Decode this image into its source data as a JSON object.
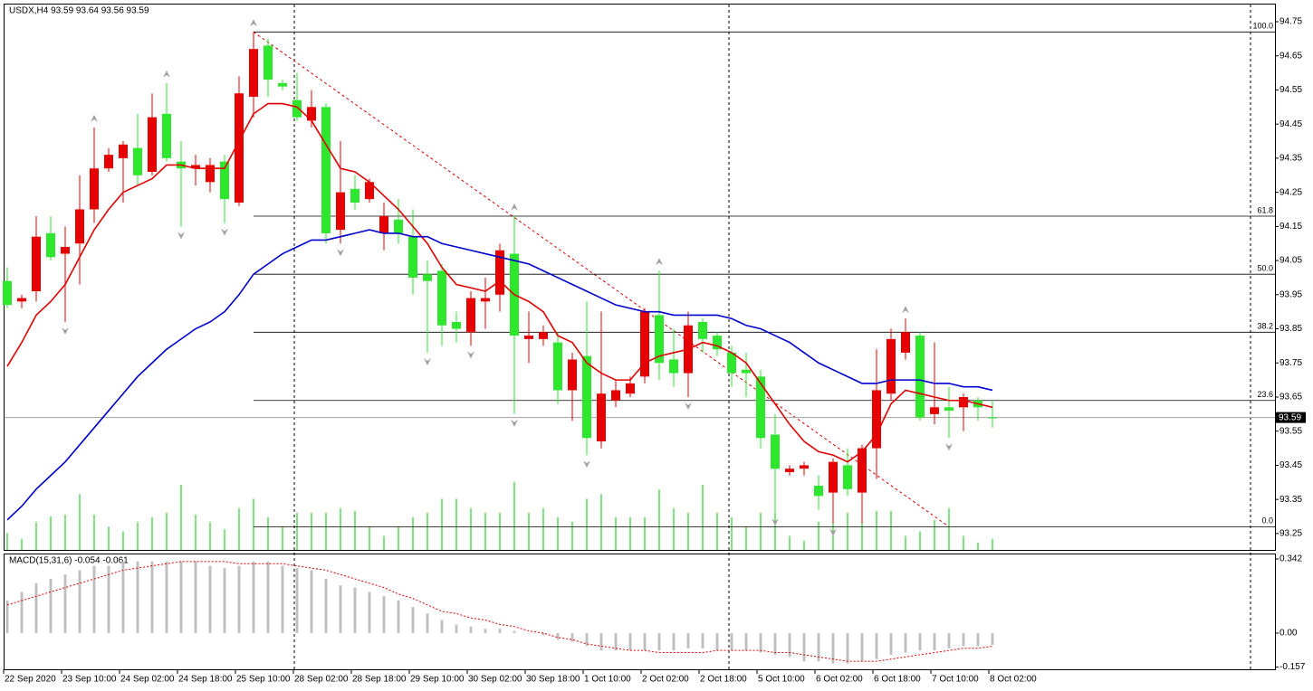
{
  "chart_data": [
    {
      "type": "candlestick",
      "title": "USDX,H4  93.59 93.64 93.56 93.59",
      "categories": [
        "22 Sep 2020",
        null,
        null,
        null,
        "23 Sep 10:00",
        null,
        null,
        null,
        "24 Sep 02:00",
        null,
        null,
        null,
        "24 Sep 18:00",
        null,
        null,
        null,
        "25 Sep 10:00",
        null,
        null,
        null,
        "28 Sep 02:00",
        null,
        null,
        null,
        "28 Sep 18:00",
        null,
        null,
        null,
        "29 Sep 10:00",
        null,
        null,
        null,
        "30 Sep 02:00",
        null,
        null,
        null,
        "30 Sep 18:00",
        null,
        null,
        null,
        "1 Oct 10:00",
        null,
        null,
        null,
        "2 Oct 02:00",
        null,
        null,
        null,
        "2 Oct 18:00",
        null,
        null,
        null,
        "5 Oct 10:00",
        null,
        null,
        null,
        "6 Oct 02:00",
        null,
        null,
        null,
        "6 Oct 18:00",
        null,
        null,
        null,
        "7 Oct 10:00",
        null,
        null,
        null,
        "8 Oct 02:00"
      ],
      "open": [
        93.99,
        93.93,
        93.96,
        94.13,
        94.07,
        94.1,
        94.2,
        94.32,
        94.35,
        94.38,
        94.31,
        94.48,
        94.34,
        94.32,
        94.28,
        94.34,
        94.22,
        94.53,
        94.68,
        94.57,
        94.52,
        94.46,
        94.5,
        94.14,
        94.26,
        94.23,
        94.13,
        94.17,
        94.12,
        94.01,
        94.02,
        93.87,
        93.84,
        93.93,
        93.95,
        94.07,
        93.82,
        93.82,
        93.81,
        93.67,
        93.77,
        93.52,
        93.64,
        93.66,
        93.71,
        93.89,
        93.76,
        93.72,
        93.87,
        93.83,
        93.78,
        93.73,
        93.71,
        93.54,
        93.43,
        93.44,
        93.39,
        93.37,
        93.45,
        93.37,
        93.5,
        93.66,
        93.78,
        93.83,
        93.6,
        93.62,
        93.62,
        93.64,
        93.59
      ],
      "high": [
        94.03,
        93.95,
        94.18,
        94.18,
        94.15,
        94.3,
        94.44,
        94.38,
        94.4,
        94.48,
        94.54,
        94.57,
        94.4,
        94.36,
        94.35,
        94.36,
        94.59,
        94.72,
        94.7,
        94.58,
        94.6,
        94.55,
        94.51,
        94.4,
        94.3,
        94.29,
        94.22,
        94.23,
        94.2,
        94.05,
        94.04,
        93.9,
        93.96,
        94.0,
        94.1,
        94.18,
        93.9,
        93.86,
        93.84,
        93.78,
        93.93,
        93.9,
        93.7,
        93.71,
        93.91,
        94.02,
        93.85,
        93.9,
        93.88,
        93.84,
        93.8,
        93.78,
        93.73,
        93.6,
        93.45,
        93.46,
        93.42,
        93.47,
        93.5,
        93.51,
        93.79,
        93.85,
        93.88,
        93.84,
        93.81,
        93.68,
        93.66,
        93.65,
        93.64
      ],
      "low": [
        93.91,
        93.91,
        93.93,
        94.05,
        93.87,
        93.98,
        94.16,
        94.31,
        94.22,
        94.27,
        94.3,
        94.34,
        94.15,
        94.27,
        94.25,
        94.16,
        94.21,
        94.47,
        94.53,
        94.55,
        94.46,
        94.44,
        94.1,
        94.1,
        94.2,
        94.22,
        94.08,
        94.1,
        93.95,
        93.78,
        93.8,
        93.81,
        93.8,
        93.85,
        93.9,
        93.6,
        93.75,
        93.8,
        93.63,
        93.58,
        93.48,
        93.5,
        93.62,
        93.65,
        93.69,
        93.7,
        93.68,
        93.65,
        93.78,
        93.77,
        93.68,
        93.65,
        93.5,
        93.31,
        93.42,
        93.42,
        93.32,
        93.28,
        93.36,
        93.28,
        93.41,
        93.64,
        93.76,
        93.58,
        93.57,
        93.53,
        93.55,
        93.58,
        93.56
      ],
      "close": [
        93.92,
        93.94,
        94.12,
        94.06,
        94.09,
        94.2,
        94.32,
        94.36,
        94.39,
        94.3,
        94.47,
        94.35,
        94.32,
        94.33,
        94.33,
        94.23,
        94.54,
        94.67,
        94.58,
        94.56,
        94.47,
        94.5,
        94.13,
        94.25,
        94.22,
        94.28,
        94.18,
        94.13,
        94.0,
        93.99,
        93.86,
        93.85,
        93.94,
        93.94,
        94.08,
        93.83,
        93.83,
        93.84,
        93.67,
        93.76,
        93.53,
        93.66,
        93.67,
        93.69,
        93.9,
        93.75,
        93.72,
        93.86,
        93.82,
        93.79,
        93.72,
        93.72,
        93.53,
        93.44,
        93.44,
        93.45,
        93.36,
        93.46,
        93.38,
        93.5,
        93.67,
        93.82,
        93.84,
        93.59,
        93.62,
        93.61,
        93.65,
        93.62,
        93.59
      ],
      "up_color": "#e60000",
      "down_color": "#2ee62e",
      "moving_averages": [
        {
          "color": "#e00000",
          "values": [
            93.74,
            93.81,
            93.89,
            93.93,
            93.98,
            94.06,
            94.14,
            94.2,
            94.25,
            94.27,
            94.29,
            94.33,
            94.33,
            94.32,
            94.32,
            94.32,
            94.4,
            94.48,
            94.51,
            94.51,
            94.5,
            94.46,
            94.39,
            94.32,
            94.31,
            94.28,
            94.24,
            94.2,
            94.15,
            94.1,
            94.03,
            93.98,
            93.97,
            93.96,
            93.99,
            93.95,
            93.93,
            93.9,
            93.83,
            93.81,
            93.75,
            93.72,
            93.7,
            93.7,
            93.75,
            93.77,
            93.78,
            93.79,
            93.81,
            93.8,
            93.78,
            93.75,
            93.69,
            93.63,
            93.57,
            93.52,
            93.49,
            93.48,
            93.46,
            93.49,
            93.54,
            93.63,
            93.67,
            93.66,
            93.65,
            93.64,
            93.64,
            93.63,
            93.62
          ]
        },
        {
          "color": "#0000cd",
          "values": [
            93.29,
            93.33,
            93.38,
            93.42,
            93.46,
            93.51,
            93.56,
            93.61,
            93.66,
            93.71,
            93.75,
            93.79,
            93.82,
            93.85,
            93.87,
            93.9,
            93.95,
            94.01,
            94.04,
            94.07,
            94.09,
            94.11,
            94.11,
            94.12,
            94.13,
            94.14,
            94.13,
            94.13,
            94.12,
            94.12,
            94.1,
            94.09,
            94.08,
            94.07,
            94.06,
            94.05,
            94.04,
            94.02,
            94.0,
            93.98,
            93.96,
            93.94,
            93.92,
            93.91,
            93.9,
            93.9,
            93.89,
            93.89,
            93.89,
            93.89,
            93.88,
            93.86,
            93.85,
            93.83,
            93.81,
            93.78,
            93.75,
            93.73,
            93.71,
            93.69,
            93.69,
            93.7,
            93.7,
            93.7,
            93.69,
            93.69,
            93.68,
            93.68,
            93.67
          ]
        }
      ],
      "volume": {
        "color": "#00c800",
        "values": [
          18,
          12,
          30,
          36,
          38,
          60,
          38,
          25,
          20,
          30,
          35,
          40,
          70,
          38,
          30,
          22,
          45,
          55,
          35,
          25,
          40,
          40,
          40,
          45,
          42,
          25,
          15,
          25,
          35,
          40,
          55,
          55,
          45,
          40,
          40,
          73,
          40,
          45,
          35,
          30,
          55,
          60,
          35,
          35,
          35,
          65,
          45,
          40,
          70,
          40,
          35,
          25,
          40,
          60,
          15,
          10,
          30,
          40,
          40,
          42,
          42,
          42,
          15,
          20,
          32,
          45,
          15,
          8,
          12
        ]
      },
      "fib_levels": [
        {
          "value": 94.72,
          "label": "100.0"
        },
        {
          "value": 94.18,
          "label": "61.8"
        },
        {
          "value": 94.01,
          "label": "50.0"
        },
        {
          "value": 93.84,
          "label": "38.2"
        },
        {
          "value": 93.64,
          "label": "23.6"
        },
        {
          "value": 93.27,
          "label": "0.0"
        }
      ],
      "bid": 93.59,
      "ylim": [
        93.202,
        94.803
      ],
      "yticks": [
        94.75,
        94.65,
        94.55,
        94.45,
        94.35,
        94.25,
        94.15,
        94.05,
        93.95,
        93.85,
        93.75,
        93.65,
        93.55,
        93.45,
        93.35,
        93.25
      ]
    },
    {
      "type": "macd",
      "title": "MACD(15,31,6) -0.054 -0.061",
      "histogram": {
        "color": "#c0c0c0",
        "values": [
          0.15,
          0.19,
          0.23,
          0.25,
          0.27,
          0.29,
          0.31,
          0.31,
          0.33,
          0.33,
          0.33,
          0.33,
          0.33,
          0.33,
          0.31,
          0.3,
          0.31,
          0.33,
          0.33,
          0.31,
          0.3,
          0.29,
          0.25,
          0.22,
          0.21,
          0.19,
          0.17,
          0.15,
          0.12,
          0.09,
          0.06,
          0.04,
          0.03,
          0.02,
          0.02,
          0.01,
          0,
          -0.01,
          -0.03,
          -0.04,
          -0.06,
          -0.08,
          -0.08,
          -0.08,
          -0.08,
          -0.08,
          -0.08,
          -0.07,
          -0.07,
          -0.08,
          -0.08,
          -0.08,
          -0.09,
          -0.1,
          -0.11,
          -0.13,
          -0.13,
          -0.14,
          -0.14,
          -0.13,
          -0.12,
          -0.1,
          -0.09,
          -0.08,
          -0.08,
          -0.07,
          -0.06,
          -0.06,
          -0.054
        ]
      },
      "signal": {
        "color": "#e00000",
        "values": [
          0.13,
          0.15,
          0.17,
          0.19,
          0.21,
          0.23,
          0.25,
          0.27,
          0.29,
          0.3,
          0.31,
          0.32,
          0.33,
          0.33,
          0.33,
          0.33,
          0.32,
          0.32,
          0.32,
          0.32,
          0.31,
          0.3,
          0.29,
          0.27,
          0.25,
          0.23,
          0.21,
          0.18,
          0.16,
          0.13,
          0.1,
          0.09,
          0.07,
          0.06,
          0.04,
          0.03,
          0.01,
          0,
          -0.02,
          -0.03,
          -0.05,
          -0.06,
          -0.07,
          -0.08,
          -0.08,
          -0.09,
          -0.09,
          -0.09,
          -0.09,
          -0.08,
          -0.08,
          -0.08,
          -0.08,
          -0.09,
          -0.09,
          -0.1,
          -0.11,
          -0.12,
          -0.13,
          -0.13,
          -0.13,
          -0.12,
          -0.11,
          -0.1,
          -0.09,
          -0.08,
          -0.07,
          -0.07,
          -0.061
        ]
      },
      "ylim": [
        -0.167,
        0.367
      ],
      "yticks": [
        0.342,
        {
          "value": 0,
          "label": "0.00"
        },
        -0.157
      ]
    }
  ]
}
